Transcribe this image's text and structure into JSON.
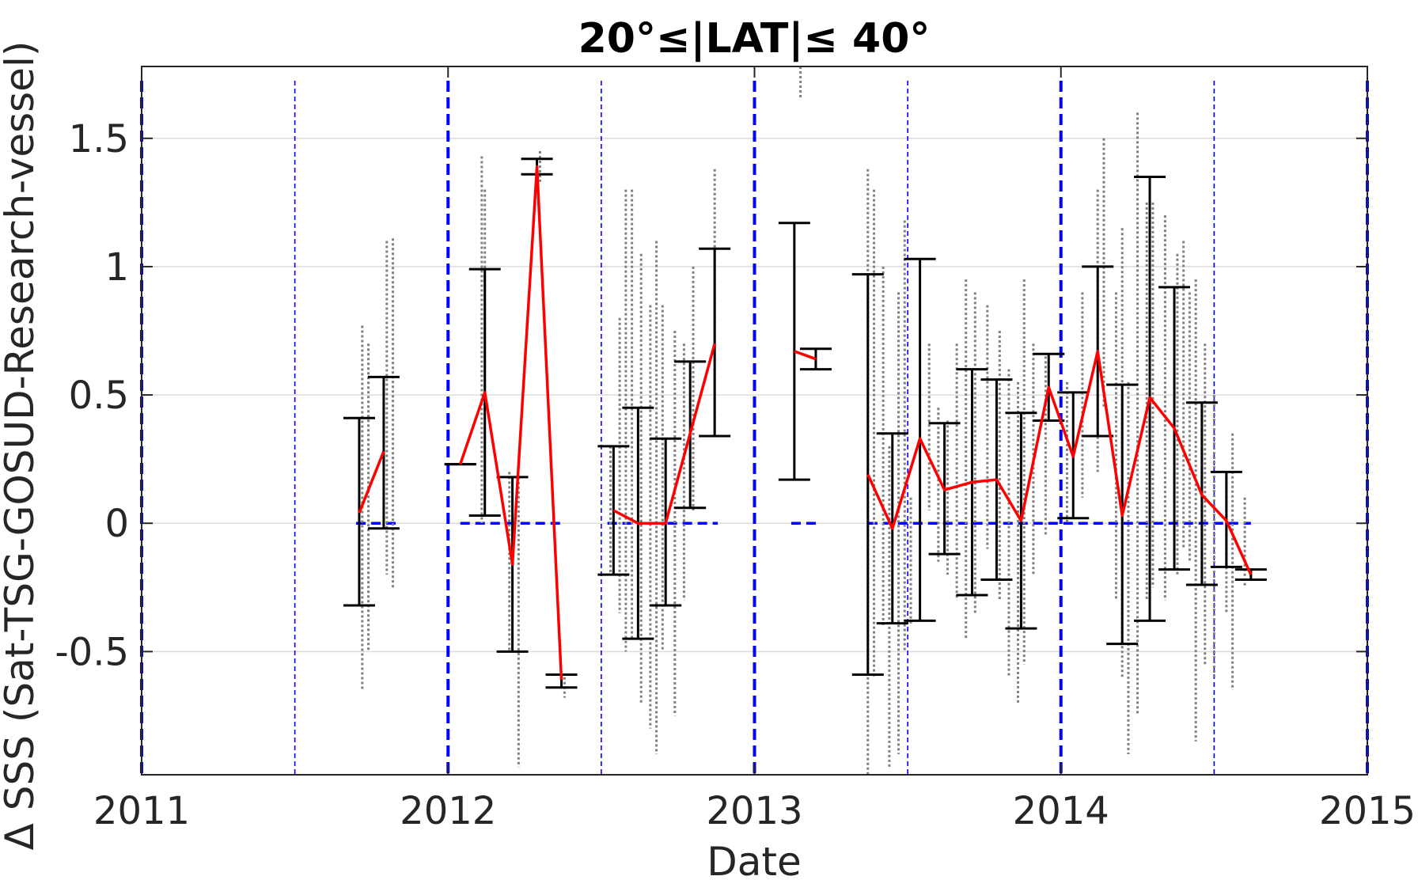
{
  "chart_data": {
    "type": "scatter",
    "title": "20°≤|LAT|≤ 40°",
    "xlabel": "Date",
    "ylabel": "Δ SSS (Sat-TSG-GOSUD-Research-vessel)",
    "xlim": [
      2011,
      2015
    ],
    "ylim": [
      -0.98,
      1.78
    ],
    "x_ticks": [
      "2011",
      "2012",
      "2013",
      "2014",
      "2015"
    ],
    "y_ticks": [
      "1.5",
      "1",
      "0.5",
      "0",
      "-0.5"
    ],
    "grid": "horizontal",
    "colors": {
      "raw_points": "#808080",
      "monthly_mean": "#ff0000",
      "error_bars": "#000000",
      "reference_lines": "#0000ff"
    },
    "year_boundaries": [
      2011,
      2012,
      2013,
      2014,
      2015
    ],
    "half_year_lines": [
      2011.5,
      2012.5,
      2013.5,
      2014.5
    ],
    "zero_line_segments": [
      [
        2011.7,
        2011.83
      ],
      [
        2012.04,
        2012.38
      ],
      [
        2012.52,
        2012.88
      ],
      [
        2013.12,
        2013.2
      ],
      [
        2013.37,
        2014.62
      ]
    ],
    "monthly_stats": [
      {
        "x": 2011.71,
        "mean": 0.04,
        "low": -0.32,
        "high": 0.41
      },
      {
        "x": 2011.79,
        "mean": 0.28,
        "low": -0.02,
        "high": 0.57
      },
      {
        "x": 2012.04,
        "mean": 0.23,
        "low": 0.23,
        "high": 0.23
      },
      {
        "x": 2012.12,
        "mean": 0.51,
        "low": 0.03,
        "high": 0.99
      },
      {
        "x": 2012.21,
        "mean": -0.16,
        "low": -0.5,
        "high": 0.18
      },
      {
        "x": 2012.29,
        "mean": 1.39,
        "low": 1.36,
        "high": 1.42
      },
      {
        "x": 2012.37,
        "mean": -0.61,
        "low": -0.64,
        "high": -0.59
      },
      {
        "x": 2012.54,
        "mean": 0.05,
        "low": -0.2,
        "high": 0.3
      },
      {
        "x": 2012.62,
        "mean": 0.0,
        "low": -0.45,
        "high": 0.45
      },
      {
        "x": 2012.71,
        "mean": 0.0,
        "low": -0.32,
        "high": 0.33
      },
      {
        "x": 2012.79,
        "mean": 0.35,
        "low": 0.06,
        "high": 0.63
      },
      {
        "x": 2012.87,
        "mean": 0.7,
        "low": 0.34,
        "high": 1.07
      },
      {
        "x": 2013.13,
        "mean": 0.67,
        "low": 0.17,
        "high": 1.17
      },
      {
        "x": 2013.2,
        "mean": 0.64,
        "low": 0.6,
        "high": 0.68
      },
      {
        "x": 2013.37,
        "mean": 0.19,
        "low": -0.59,
        "high": 0.97
      },
      {
        "x": 2013.45,
        "mean": -0.02,
        "low": -0.39,
        "high": 0.35
      },
      {
        "x": 2013.54,
        "mean": 0.33,
        "low": -0.38,
        "high": 1.03
      },
      {
        "x": 2013.62,
        "mean": 0.13,
        "low": -0.12,
        "high": 0.39
      },
      {
        "x": 2013.71,
        "mean": 0.16,
        "low": -0.28,
        "high": 0.6
      },
      {
        "x": 2013.79,
        "mean": 0.17,
        "low": -0.22,
        "high": 0.56
      },
      {
        "x": 2013.87,
        "mean": 0.01,
        "low": -0.41,
        "high": 0.43
      },
      {
        "x": 2013.96,
        "mean": 0.53,
        "low": 0.4,
        "high": 0.66
      },
      {
        "x": 2014.04,
        "mean": 0.26,
        "low": 0.02,
        "high": 0.51
      },
      {
        "x": 2014.12,
        "mean": 0.67,
        "low": 0.34,
        "high": 1.0
      },
      {
        "x": 2014.2,
        "mean": 0.03,
        "low": -0.47,
        "high": 0.54
      },
      {
        "x": 2014.29,
        "mean": 0.49,
        "low": -0.38,
        "high": 1.35
      },
      {
        "x": 2014.37,
        "mean": 0.37,
        "low": -0.18,
        "high": 0.92
      },
      {
        "x": 2014.46,
        "mean": 0.11,
        "low": -0.24,
        "high": 0.47
      },
      {
        "x": 2014.54,
        "mean": 0.01,
        "low": -0.17,
        "high": 0.2
      },
      {
        "x": 2014.62,
        "mean": -0.2,
        "low": -0.22,
        "high": -0.18
      }
    ],
    "mean_line_groups": [
      [
        0,
        1
      ],
      [
        2,
        3,
        4,
        5,
        6
      ],
      [
        7,
        8,
        9,
        10,
        11
      ],
      [
        12,
        13
      ],
      [
        14,
        15,
        16,
        17,
        18,
        19,
        20,
        21,
        22,
        23,
        24,
        25,
        26,
        27,
        28,
        29
      ]
    ],
    "scatter_columns": [
      {
        "x": 2011.72,
        "low": -0.65,
        "high": 0.77
      },
      {
        "x": 2011.74,
        "low": -0.5,
        "high": 0.7
      },
      {
        "x": 2011.8,
        "low": -0.2,
        "high": 1.1
      },
      {
        "x": 2011.82,
        "low": -0.25,
        "high": 1.11
      },
      {
        "x": 2012.11,
        "low": 0.0,
        "high": 1.43
      },
      {
        "x": 2012.12,
        "low": 0.1,
        "high": 1.3
      },
      {
        "x": 2012.2,
        "low": -0.5,
        "high": 0.2
      },
      {
        "x": 2012.23,
        "low": -0.95,
        "high": 0.18
      },
      {
        "x": 2012.3,
        "low": 1.33,
        "high": 1.45
      },
      {
        "x": 2012.38,
        "low": -0.68,
        "high": -0.6
      },
      {
        "x": 2012.53,
        "low": -0.2,
        "high": 0.3
      },
      {
        "x": 2012.56,
        "low": -0.35,
        "high": 0.8
      },
      {
        "x": 2012.58,
        "low": -0.5,
        "high": 1.3
      },
      {
        "x": 2012.6,
        "low": -0.45,
        "high": 1.3
      },
      {
        "x": 2012.63,
        "low": -0.7,
        "high": 1.05
      },
      {
        "x": 2012.66,
        "low": -0.8,
        "high": 0.85
      },
      {
        "x": 2012.68,
        "low": -0.9,
        "high": 1.1
      },
      {
        "x": 2012.7,
        "low": -0.5,
        "high": 0.85
      },
      {
        "x": 2012.74,
        "low": -0.75,
        "high": 0.75
      },
      {
        "x": 2012.77,
        "low": -0.3,
        "high": 0.7
      },
      {
        "x": 2012.8,
        "low": 0.05,
        "high": 1.0
      },
      {
        "x": 2012.87,
        "low": 0.35,
        "high": 1.38
      },
      {
        "x": 2013.15,
        "low": 1.65,
        "high": 1.78
      },
      {
        "x": 2013.37,
        "low": -0.98,
        "high": 1.38
      },
      {
        "x": 2013.39,
        "low": -0.6,
        "high": 1.3
      },
      {
        "x": 2013.42,
        "low": -0.4,
        "high": 1.0
      },
      {
        "x": 2013.44,
        "low": -0.95,
        "high": 0.3
      },
      {
        "x": 2013.47,
        "low": -0.9,
        "high": 0.9
      },
      {
        "x": 2013.49,
        "low": -0.5,
        "high": 1.18
      },
      {
        "x": 2013.51,
        "low": -0.4,
        "high": 0.1
      },
      {
        "x": 2013.57,
        "low": 0.05,
        "high": 0.7
      },
      {
        "x": 2013.6,
        "low": -0.15,
        "high": 0.45
      },
      {
        "x": 2013.63,
        "low": -0.2,
        "high": 0.4
      },
      {
        "x": 2013.66,
        "low": -0.3,
        "high": 0.7
      },
      {
        "x": 2013.69,
        "low": -0.45,
        "high": 0.95
      },
      {
        "x": 2013.72,
        "low": -0.35,
        "high": 0.9
      },
      {
        "x": 2013.76,
        "low": -0.1,
        "high": 0.85
      },
      {
        "x": 2013.8,
        "low": -0.3,
        "high": 0.75
      },
      {
        "x": 2013.83,
        "low": -0.6,
        "high": 0.6
      },
      {
        "x": 2013.86,
        "low": -0.7,
        "high": 0.55
      },
      {
        "x": 2013.88,
        "low": -0.55,
        "high": 0.95
      },
      {
        "x": 2013.91,
        "low": -0.2,
        "high": 0.7
      },
      {
        "x": 2013.95,
        "low": -0.05,
        "high": 0.65
      },
      {
        "x": 2014.02,
        "low": 0.0,
        "high": 0.55
      },
      {
        "x": 2014.07,
        "low": 0.1,
        "high": 0.9
      },
      {
        "x": 2014.12,
        "low": 0.2,
        "high": 1.3
      },
      {
        "x": 2014.14,
        "low": 0.45,
        "high": 1.5
      },
      {
        "x": 2014.18,
        "low": -0.3,
        "high": 0.9
      },
      {
        "x": 2014.2,
        "low": -0.6,
        "high": 1.15
      },
      {
        "x": 2014.22,
        "low": -0.9,
        "high": 0.55
      },
      {
        "x": 2014.25,
        "low": -0.75,
        "high": 1.6
      },
      {
        "x": 2014.28,
        "low": -0.3,
        "high": 1.25
      },
      {
        "x": 2014.3,
        "low": -0.25,
        "high": 1.25
      },
      {
        "x": 2014.34,
        "low": -0.3,
        "high": 1.2
      },
      {
        "x": 2014.38,
        "low": -0.2,
        "high": 1.05
      },
      {
        "x": 2014.4,
        "low": -0.1,
        "high": 1.1
      },
      {
        "x": 2014.42,
        "low": -0.15,
        "high": 0.9
      },
      {
        "x": 2014.44,
        "low": -0.85,
        "high": 0.95
      },
      {
        "x": 2014.47,
        "low": -0.55,
        "high": 0.7
      },
      {
        "x": 2014.5,
        "low": -0.6,
        "high": 0.5
      },
      {
        "x": 2014.54,
        "low": -0.35,
        "high": 0.2
      },
      {
        "x": 2014.56,
        "low": -0.65,
        "high": 0.35
      },
      {
        "x": 2014.6,
        "low": -0.25,
        "high": 0.1
      },
      {
        "x": 2014.62,
        "low": -0.22,
        "high": -0.18
      }
    ]
  }
}
